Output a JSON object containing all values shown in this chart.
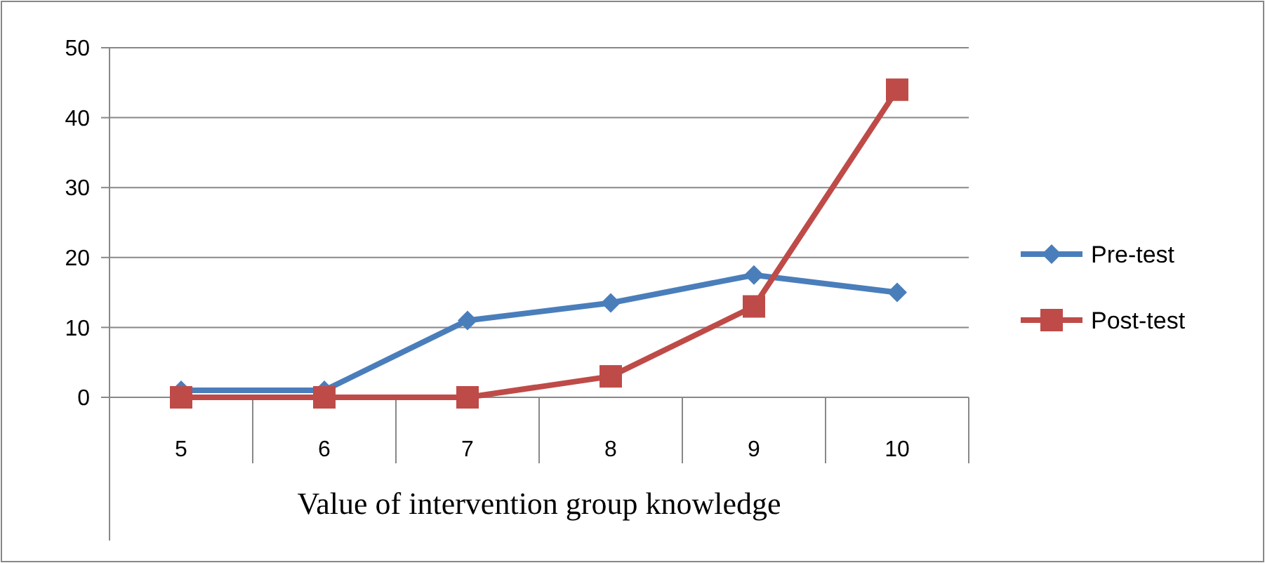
{
  "chart_data": {
    "type": "line",
    "xlabel": "Value of intervention group knowledge",
    "categories": [
      "5",
      "6",
      "7",
      "8",
      "9",
      "10"
    ],
    "series": [
      {
        "name": "Pre-test",
        "color": "#4a7ebb",
        "marker": "diamond",
        "values": [
          1,
          1,
          11,
          13.5,
          17.5,
          15
        ]
      },
      {
        "name": "Post-test",
        "color": "#be4b48",
        "marker": "square",
        "values": [
          0,
          0,
          0,
          3,
          13,
          44
        ]
      }
    ],
    "ylim": [
      0,
      50
    ],
    "yticks": [
      0,
      10,
      20,
      30,
      40,
      50
    ],
    "grid": "y",
    "legend": "right"
  }
}
